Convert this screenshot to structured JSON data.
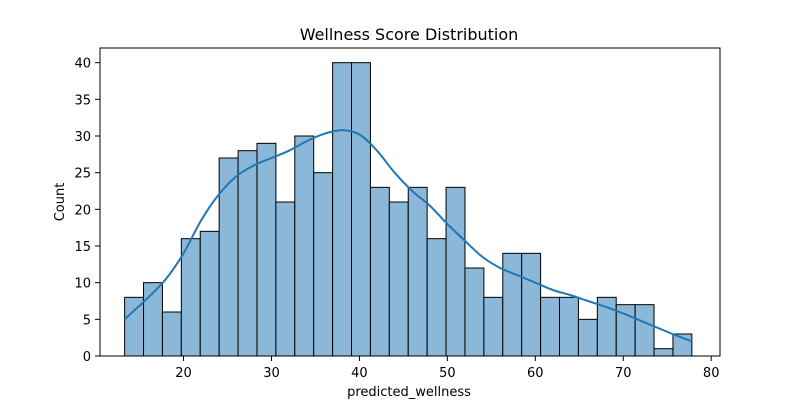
{
  "chart_data": {
    "type": "bar",
    "subtype": "histogram_with_kde",
    "title": "Wellness Score Distribution",
    "xlabel": "predicted_wellness",
    "ylabel": "Count",
    "xlim": [
      10.5,
      81
    ],
    "ylim": [
      0,
      42
    ],
    "xticks": [
      20,
      30,
      40,
      50,
      60,
      70,
      80
    ],
    "yticks": [
      0,
      5,
      10,
      15,
      20,
      25,
      30,
      35,
      40
    ],
    "grid": false,
    "legend": "none",
    "colors": {
      "bar_fill": "#8bb7d9",
      "bar_edge": "#000000",
      "kde_line": "#1f77b4"
    },
    "bins": {
      "start": 13.3,
      "width": 2.15,
      "counts": [
        8,
        10,
        6,
        16,
        17,
        27,
        28,
        29,
        21,
        30,
        25,
        40,
        40,
        23,
        21,
        23,
        16,
        23,
        12,
        8,
        14,
        14,
        8,
        8,
        5,
        8,
        7,
        7,
        1,
        3
      ]
    },
    "kde": {
      "x": [
        13.3,
        16,
        18,
        20,
        22,
        24,
        26,
        28,
        30,
        32,
        34,
        36,
        38,
        40,
        42,
        44,
        46,
        48,
        50,
        52,
        54,
        56,
        58,
        60,
        62,
        64,
        66,
        68,
        70,
        72,
        74,
        76,
        77.8
      ],
      "y": [
        5,
        8,
        10.5,
        14,
        18.5,
        22,
        24.5,
        26,
        27,
        28,
        29.3,
        30.3,
        30.8,
        30.2,
        28,
        25,
        22.5,
        20.5,
        18,
        15.7,
        13.5,
        12,
        11,
        10,
        9,
        8.3,
        7.5,
        6.7,
        5.8,
        4.8,
        3.8,
        2.8,
        2
      ]
    }
  }
}
